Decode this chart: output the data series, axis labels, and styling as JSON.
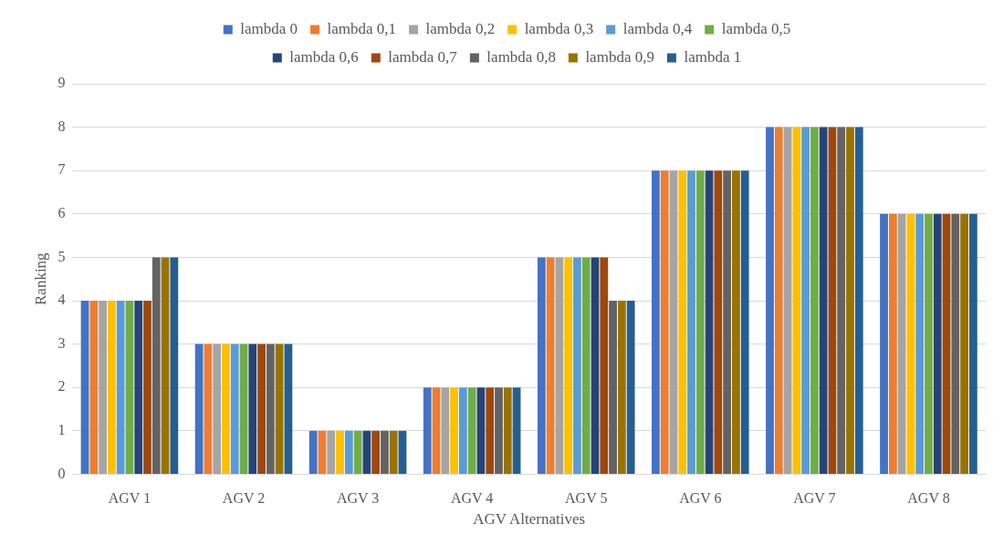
{
  "chart_data": {
    "type": "bar",
    "xlabel": "AGV Alternatives",
    "ylabel": "Ranking",
    "categories": [
      "AGV 1",
      "AGV 2",
      "AGV 3",
      "AGV 4",
      "AGV 5",
      "AGV 6",
      "AGV 7",
      "AGV 8"
    ],
    "series": [
      {
        "name": "lambda 0",
        "color": "#4472c4",
        "values": [
          4,
          3,
          1,
          2,
          5,
          7,
          8,
          6
        ]
      },
      {
        "name": "lambda 0,1",
        "color": "#ed7d31",
        "values": [
          4,
          3,
          1,
          2,
          5,
          7,
          8,
          6
        ]
      },
      {
        "name": "lambda 0,2",
        "color": "#a5a5a5",
        "values": [
          4,
          3,
          1,
          2,
          5,
          7,
          8,
          6
        ]
      },
      {
        "name": "lambda 0,3",
        "color": "#ffc000",
        "values": [
          4,
          3,
          1,
          2,
          5,
          7,
          8,
          6
        ]
      },
      {
        "name": "lambda 0,4",
        "color": "#5b9bd5",
        "values": [
          4,
          3,
          1,
          2,
          5,
          7,
          8,
          6
        ]
      },
      {
        "name": "lambda 0,5",
        "color": "#70ad47",
        "values": [
          4,
          3,
          1,
          2,
          5,
          7,
          8,
          6
        ]
      },
      {
        "name": "lambda 0,6",
        "color": "#264478",
        "values": [
          4,
          3,
          1,
          2,
          5,
          7,
          8,
          6
        ]
      },
      {
        "name": "lambda 0,7",
        "color": "#9e480e",
        "values": [
          4,
          3,
          1,
          2,
          5,
          7,
          8,
          6
        ]
      },
      {
        "name": "lambda 0,8",
        "color": "#636363",
        "values": [
          5,
          3,
          1,
          2,
          4,
          7,
          8,
          6
        ]
      },
      {
        "name": "lambda 0,9",
        "color": "#997300",
        "values": [
          5,
          3,
          1,
          2,
          4,
          7,
          8,
          6
        ]
      },
      {
        "name": "lambda 1",
        "color": "#255e91",
        "values": [
          5,
          3,
          1,
          2,
          4,
          7,
          8,
          6
        ]
      }
    ],
    "ylim": [
      0,
      9
    ],
    "yticks": [
      0,
      1,
      2,
      3,
      4,
      5,
      6,
      7,
      8,
      9
    ],
    "grid": "y",
    "legend": "top"
  }
}
